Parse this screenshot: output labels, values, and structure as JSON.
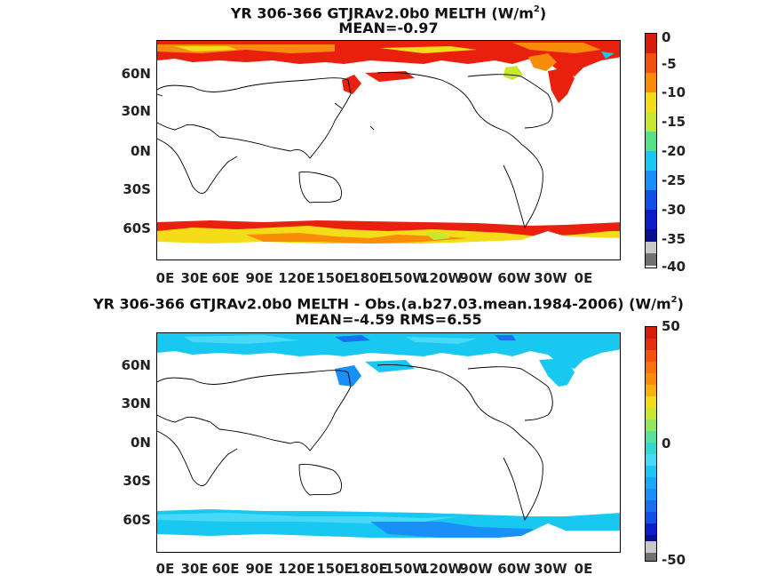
{
  "panel1": {
    "title_line1": "YR 306-366 GTJRAv2.0b0  MELTH (W/m",
    "title_sup": "2",
    "title_close": ")",
    "title_line2": "MEAN=-0.97",
    "colorbar_labels": [
      "0",
      "-5",
      "-10",
      "-15",
      "-20",
      "-25",
      "-30",
      "-35",
      "-40"
    ]
  },
  "panel2": {
    "title_line1": "YR 306-366 GTJRAv2.0b0 MELTH - Obs.(a.b27.03.mean.1984-2006) (W/m",
    "title_sup": "2",
    "title_close": ")",
    "title_line2": "MEAN=-4.59 RMS=6.55",
    "colorbar_labels": [
      "50",
      "0",
      "-50"
    ]
  },
  "axes": {
    "lat_labels": [
      "60N",
      "30N",
      "0N",
      "30S",
      "60S"
    ],
    "lon_labels": [
      "0E",
      "30E",
      "60E",
      "90E",
      "120E",
      "150E",
      "180E",
      "150W",
      "120W",
      "90W",
      "60W",
      "30W",
      "0E"
    ]
  },
  "colors": {
    "ocean_land": "#ffffff",
    "coast": "#000000",
    "red": "#e8200d",
    "orange": "#f98c08",
    "yellow": "#f4dc18",
    "lime": "#c8e830",
    "cyan": "#18c8f0",
    "light_cyan": "#48d8f8",
    "blue": "#1870f0",
    "gray": "#c8c8c8",
    "dark_gray": "#707070"
  }
}
